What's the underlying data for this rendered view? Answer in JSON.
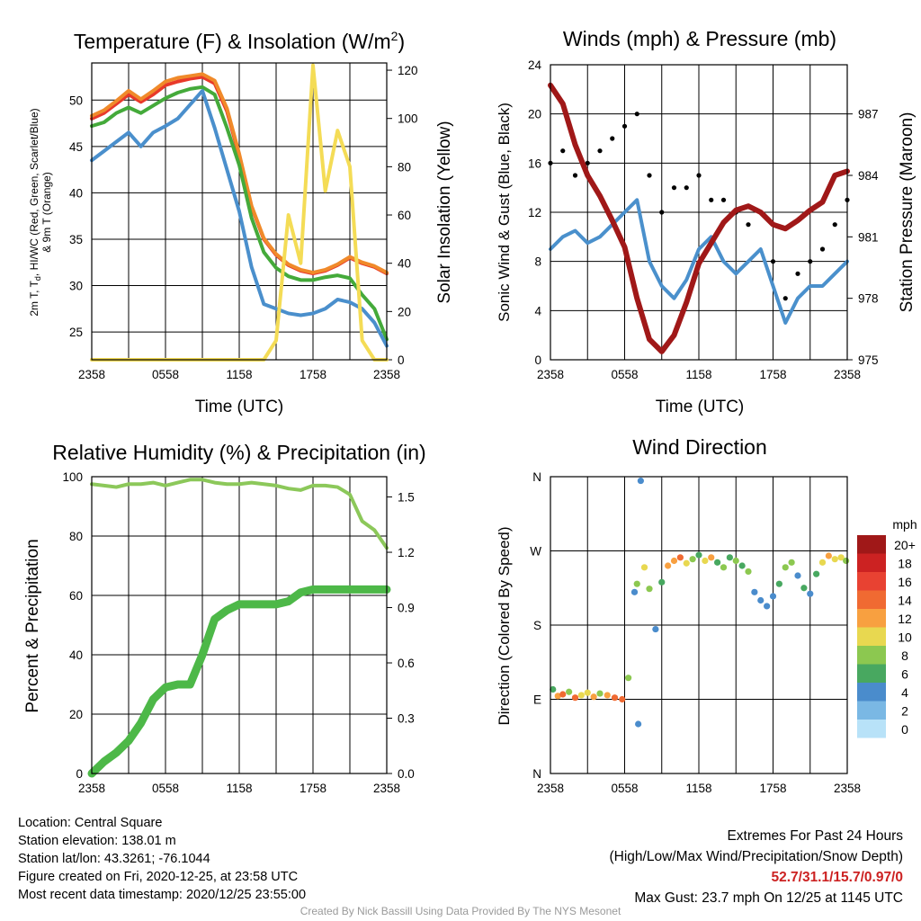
{
  "panels": {
    "temperature": {
      "title": "Temperature (F) & Insolation (W/m",
      "title_sup": "2",
      "title_close": ")",
      "ylabel_line1": "2m T, T",
      "ylabel_sub": "d",
      "ylabel_line1_rest": ", HI/WC (Red, Green, Scarlet/Blue)",
      "ylabel_line2": "& 9m T (Orange)",
      "y2label": "Solar Insolation (Yellow)",
      "xlabel": "Time (UTC)"
    },
    "winds": {
      "title": "Winds (mph) & Pressure (mb)",
      "ylabel": "Sonic Wind & Gust (Blue, Black)",
      "y2label": "Station Pressure (Maroon)",
      "xlabel": "Time (UTC)"
    },
    "humidity": {
      "title": "Relative Humidity (%) & Precipitation (in)",
      "ylabel": "Percent & Precipitation"
    },
    "direction": {
      "title": "Wind Direction",
      "ylabel": "Direction (Colored By Speed)",
      "legend_title": "mph"
    }
  },
  "chart_data": [
    {
      "type": "line",
      "title": "Temperature (F) & Insolation (W/m2)",
      "xlabel": "Time (UTC)",
      "ylabel": "2m T, Td, HI/WC (Red, Green, Scarlet/Blue) & 9m T (Orange)",
      "y2label": "Solar Insolation (Yellow)",
      "x_ticks": [
        "2358",
        "0558",
        "1158",
        "1758",
        "2358"
      ],
      "ylim": [
        22,
        54
      ],
      "y_ticks": [
        25,
        30,
        35,
        40,
        45,
        50
      ],
      "y2lim": [
        0,
        123
      ],
      "y2_ticks": [
        0,
        20,
        40,
        60,
        80,
        100,
        120
      ],
      "x_hours": [
        0,
        1,
        2,
        3,
        4,
        5,
        6,
        7,
        8,
        9,
        10,
        11,
        12,
        13,
        14,
        15,
        16,
        17,
        18,
        19,
        20,
        21,
        22,
        23,
        24
      ],
      "series": [
        {
          "color": "#e8392a",
          "axis": "left",
          "values": [
            48,
            48.6,
            49.6,
            50.6,
            49.8,
            50.6,
            51.6,
            52,
            52.3,
            52.5,
            51.8,
            48.8,
            44,
            38.5,
            35,
            33.3,
            32.2,
            31.6,
            31.3,
            31.6,
            32.2,
            33,
            32.4,
            32,
            31.3
          ]
        },
        {
          "color": "#f08a2a",
          "axis": "left",
          "values": [
            48.3,
            48.9,
            49.9,
            51,
            50.1,
            51,
            52,
            52.4,
            52.6,
            52.8,
            52.1,
            49.1,
            44.2,
            38.6,
            35.1,
            33.4,
            32.3,
            31.7,
            31.4,
            31.7,
            32.3,
            33.1,
            32.5,
            32.1,
            31.4
          ]
        },
        {
          "color": "#44aa3a",
          "axis": "left",
          "values": [
            47.2,
            47.6,
            48.6,
            49.2,
            48.6,
            49.4,
            50.2,
            50.8,
            51.2,
            51.4,
            50.6,
            47,
            43,
            37.3,
            33.6,
            31.9,
            31,
            30.6,
            30.6,
            30.9,
            31.1,
            30.8,
            29,
            27.5,
            24.2
          ]
        },
        {
          "color": "#4a8fcc",
          "axis": "left",
          "values": [
            43.5,
            44.5,
            45.5,
            46.5,
            45,
            46.5,
            47.2,
            48,
            49.5,
            51,
            47,
            42.5,
            38,
            32,
            28,
            27.5,
            27,
            26.8,
            27,
            27.5,
            28.5,
            28.2,
            27.5,
            26,
            23.5
          ]
        },
        {
          "color": "#f4dc56",
          "axis": "right",
          "values": [
            0,
            0,
            0,
            0,
            0,
            0,
            0,
            0,
            0,
            0,
            0,
            0,
            0,
            0,
            0,
            8,
            60,
            40,
            122,
            70,
            95,
            80,
            8,
            0,
            0
          ]
        }
      ]
    },
    {
      "type": "line",
      "title": "Winds (mph) & Pressure (mb)",
      "xlabel": "Time (UTC)",
      "ylabel": "Sonic Wind & Gust (Blue, Black)",
      "y2label": "Station Pressure (Maroon)",
      "x_ticks": [
        "2358",
        "0558",
        "1158",
        "1758",
        "2358"
      ],
      "ylim": [
        0,
        24
      ],
      "y_ticks": [
        0,
        4,
        8,
        12,
        16,
        20,
        24
      ],
      "y2lim": [
        975,
        989.4
      ],
      "y2_ticks": [
        975,
        978,
        981,
        984,
        987
      ],
      "x_hours": [
        0,
        1,
        2,
        3,
        4,
        5,
        6,
        7,
        8,
        9,
        10,
        11,
        12,
        13,
        14,
        15,
        16,
        17,
        18,
        19,
        20,
        21,
        22,
        23,
        24
      ],
      "series": [
        {
          "color": "#4a90cc",
          "axis": "left",
          "values": [
            9,
            10,
            10.5,
            9.5,
            10,
            11,
            12,
            13,
            8,
            6,
            5,
            6.5,
            9,
            10,
            8,
            7,
            8,
            9,
            6,
            3,
            5,
            6,
            6,
            7,
            8
          ]
        },
        {
          "color": "#000000",
          "axis": "left",
          "style": "points",
          "values": [
            16,
            17,
            15,
            16,
            17,
            18,
            19,
            20,
            15,
            12,
            14,
            14,
            15,
            13,
            13,
            12,
            11,
            12,
            8,
            5,
            7,
            8,
            9,
            11,
            13
          ]
        },
        {
          "color": "#a01818",
          "axis": "right",
          "values": [
            988.4,
            987.5,
            985.5,
            984,
            983,
            981.8,
            980.5,
            978,
            976,
            975.4,
            976.2,
            977.8,
            979.7,
            980.7,
            981.7,
            982.3,
            982.5,
            982.2,
            981.6,
            981.4,
            981.8,
            982.3,
            982.7,
            984,
            984.2
          ]
        }
      ]
    },
    {
      "type": "line",
      "title": "Relative Humidity (%) & Precipitation (in)",
      "ylabel": "Percent & Precipitation",
      "x_ticks": [
        "2358",
        "0558",
        "1158",
        "1758",
        "2358"
      ],
      "ylim": [
        0,
        100
      ],
      "y_ticks": [
        0,
        20,
        40,
        60,
        80,
        100
      ],
      "y2lim": [
        0,
        1.61
      ],
      "y2_ticks": [
        "0.0",
        "0.3",
        "0.6",
        "0.9",
        "1.2",
        "1.5"
      ],
      "x_hours": [
        0,
        1,
        2,
        3,
        4,
        5,
        6,
        7,
        8,
        9,
        10,
        11,
        12,
        13,
        14,
        15,
        16,
        17,
        18,
        19,
        20,
        21,
        22,
        23,
        24
      ],
      "series": [
        {
          "color": "#8cc85a",
          "axis": "left",
          "values": [
            97.5,
            97,
            96.5,
            97.5,
            97.5,
            98,
            97,
            98,
            99,
            99,
            98,
            97.5,
            97.5,
            98,
            97.5,
            97,
            96,
            95.5,
            97,
            97,
            96.5,
            94,
            85,
            82,
            76
          ]
        },
        {
          "color": "#4db848",
          "axis": "left",
          "values": [
            0,
            4,
            7,
            11,
            17,
            25,
            29,
            30,
            30,
            40,
            52,
            55,
            57,
            57,
            57,
            57,
            58,
            61,
            62,
            62,
            62,
            62,
            62,
            62,
            62
          ]
        }
      ]
    },
    {
      "type": "scatter",
      "title": "Wind Direction",
      "ylabel": "Direction (Colored By Speed)",
      "x_ticks": [
        "2358",
        "0558",
        "1158",
        "1758",
        "2358"
      ],
      "y_ticks": [
        "N",
        "E",
        "S",
        "W",
        "N"
      ],
      "ylim": [
        0,
        360
      ],
      "legend_title": "mph",
      "legend_labels": [
        "20+",
        "18",
        "16",
        "14",
        "12",
        "10",
        "8",
        "6",
        "4",
        "2",
        "0"
      ],
      "legend_colors": [
        "#a01818",
        "#cc2222",
        "#e84232",
        "#f06a32",
        "#f8a040",
        "#e8d850",
        "#8cc850",
        "#48a860",
        "#4a8ccc",
        "#7ab8e4",
        "#b8e2f8"
      ],
      "points": [
        {
          "x": 0.2,
          "y": 102,
          "speed": 6
        },
        {
          "x": 0.6,
          "y": 94,
          "speed": 12
        },
        {
          "x": 1.0,
          "y": 96,
          "speed": 14
        },
        {
          "x": 1.5,
          "y": 99,
          "speed": 8
        },
        {
          "x": 2.0,
          "y": 92,
          "speed": 13
        },
        {
          "x": 2.5,
          "y": 95,
          "speed": 10
        },
        {
          "x": 3.0,
          "y": 98,
          "speed": 9
        },
        {
          "x": 3.5,
          "y": 93,
          "speed": 12
        },
        {
          "x": 4.0,
          "y": 97,
          "speed": 7
        },
        {
          "x": 4.6,
          "y": 95,
          "speed": 11
        },
        {
          "x": 5.2,
          "y": 92,
          "speed": 14
        },
        {
          "x": 5.8,
          "y": 90,
          "speed": 13
        },
        {
          "x": 6.3,
          "y": 116,
          "speed": 8
        },
        {
          "x": 6.8,
          "y": 220,
          "speed": 4
        },
        {
          "x": 7.0,
          "y": 230,
          "speed": 7
        },
        {
          "x": 7.1,
          "y": 60,
          "speed": 3
        },
        {
          "x": 7.3,
          "y": 355,
          "speed": 3
        },
        {
          "x": 7.6,
          "y": 250,
          "speed": 10
        },
        {
          "x": 8.0,
          "y": 224,
          "speed": 8
        },
        {
          "x": 8.5,
          "y": 175,
          "speed": 4
        },
        {
          "x": 9.0,
          "y": 232,
          "speed": 6
        },
        {
          "x": 9.5,
          "y": 252,
          "speed": 12
        },
        {
          "x": 10.0,
          "y": 258,
          "speed": 11
        },
        {
          "x": 10.5,
          "y": 262,
          "speed": 14
        },
        {
          "x": 11.0,
          "y": 255,
          "speed": 10
        },
        {
          "x": 11.5,
          "y": 260,
          "speed": 8
        },
        {
          "x": 12.0,
          "y": 265,
          "speed": 6
        },
        {
          "x": 12.5,
          "y": 258,
          "speed": 9
        },
        {
          "x": 13.0,
          "y": 262,
          "speed": 12
        },
        {
          "x": 13.5,
          "y": 256,
          "speed": 6
        },
        {
          "x": 14.0,
          "y": 250,
          "speed": 7
        },
        {
          "x": 14.5,
          "y": 262,
          "speed": 5
        },
        {
          "x": 15.0,
          "y": 258,
          "speed": 8
        },
        {
          "x": 15.5,
          "y": 252,
          "speed": 6
        },
        {
          "x": 16.0,
          "y": 245,
          "speed": 7
        },
        {
          "x": 16.5,
          "y": 220,
          "speed": 4
        },
        {
          "x": 17.0,
          "y": 210,
          "speed": 4
        },
        {
          "x": 17.5,
          "y": 203,
          "speed": 3
        },
        {
          "x": 18.0,
          "y": 215,
          "speed": 4
        },
        {
          "x": 18.5,
          "y": 230,
          "speed": 6
        },
        {
          "x": 19.0,
          "y": 250,
          "speed": 8
        },
        {
          "x": 19.5,
          "y": 256,
          "speed": 7
        },
        {
          "x": 20.0,
          "y": 240,
          "speed": 4
        },
        {
          "x": 20.5,
          "y": 225,
          "speed": 5
        },
        {
          "x": 21.0,
          "y": 218,
          "speed": 4
        },
        {
          "x": 21.5,
          "y": 242,
          "speed": 6
        },
        {
          "x": 22.0,
          "y": 256,
          "speed": 10
        },
        {
          "x": 22.5,
          "y": 264,
          "speed": 12
        },
        {
          "x": 23.0,
          "y": 260,
          "speed": 9
        },
        {
          "x": 23.5,
          "y": 262,
          "speed": 10
        },
        {
          "x": 23.9,
          "y": 258,
          "speed": 8
        }
      ]
    }
  ],
  "info": {
    "location": "Location: Central Square",
    "elevation": "Station elevation: 138.01 m",
    "latlon": "Station lat/lon: 43.3261; -76.1044",
    "created": "Figure created on Fri, 2020-12-25, at 23:58 UTC",
    "timestamp": "Most recent data timestamp: 2020/12/25 23:55:00"
  },
  "extremes": {
    "heading": "Extremes For Past 24 Hours",
    "fields": "(High/Low/Max Wind/Precipitation/Snow Depth)",
    "values": "52.7/31.1/15.7/0.97/0",
    "max_gust": "Max Gust: 23.7 mph On 12/25 at 1145 UTC"
  },
  "credit": "Created By Nick Bassill Using Data Provided By The NYS Mesonet"
}
